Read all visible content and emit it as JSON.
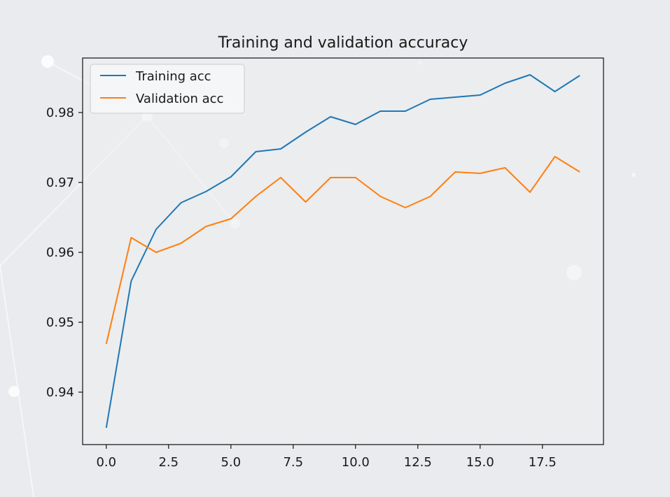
{
  "chart_data": {
    "type": "line",
    "title": "Training and validation accuracy",
    "xlabel": "",
    "ylabel": "",
    "x": [
      0,
      1,
      2,
      3,
      4,
      5,
      6,
      7,
      8,
      9,
      10,
      11,
      12,
      13,
      14,
      15,
      16,
      17,
      18,
      19
    ],
    "xlim": [
      -0.95,
      19.95
    ],
    "ylim": [
      0.9325,
      0.9878
    ],
    "xticks": [
      0.0,
      2.5,
      5.0,
      7.5,
      10.0,
      12.5,
      15.0,
      17.5
    ],
    "xtick_labels": [
      "0.0",
      "2.5",
      "5.0",
      "7.5",
      "10.0",
      "12.5",
      "15.0",
      "17.5"
    ],
    "yticks": [
      0.94,
      0.95,
      0.96,
      0.97,
      0.98
    ],
    "ytick_labels": [
      "0.94",
      "0.95",
      "0.96",
      "0.97",
      "0.98"
    ],
    "grid": false,
    "legend_position": "top-left",
    "series": [
      {
        "name": "Training acc",
        "color": "#1f77b4",
        "values": [
          0.9349,
          0.9559,
          0.9633,
          0.9671,
          0.9687,
          0.9708,
          0.9744,
          0.9748,
          0.9772,
          0.9794,
          0.9783,
          0.9802,
          0.9802,
          0.9819,
          0.9822,
          0.9825,
          0.9842,
          0.9854,
          0.983,
          0.9853
        ]
      },
      {
        "name": "Validation acc",
        "color": "#ff7f0e",
        "values": [
          0.9469,
          0.9621,
          0.96,
          0.9613,
          0.9637,
          0.9648,
          0.968,
          0.9707,
          0.9672,
          0.9707,
          0.9707,
          0.968,
          0.9664,
          0.968,
          0.9715,
          0.9713,
          0.9721,
          0.9686,
          0.9737,
          0.9715
        ]
      }
    ]
  }
}
